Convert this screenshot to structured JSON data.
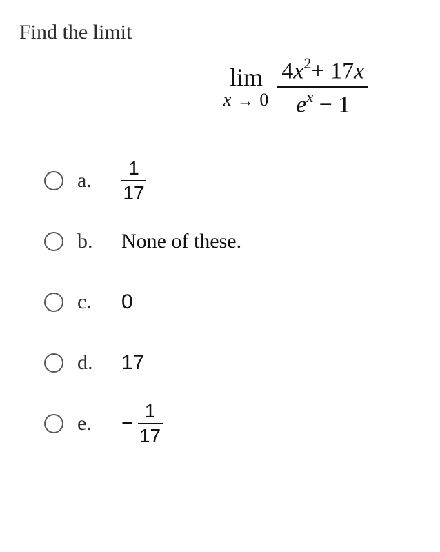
{
  "prompt": "Find the limit",
  "equation": {
    "lim_label": "lim",
    "lim_var": "x",
    "lim_arrow": "→",
    "lim_target": "0",
    "numerator_coef1": "4",
    "numerator_var1": "x",
    "numerator_exp": "2",
    "numerator_plus": "+ 17",
    "numerator_var2": "x",
    "denom_e": "e",
    "denom_exp": "x",
    "denom_tail": "− 1"
  },
  "options": {
    "a": {
      "letter": "a.",
      "frac_num": "1",
      "frac_den": "17"
    },
    "b": {
      "letter": "b.",
      "text": "None of these."
    },
    "c": {
      "letter": "c.",
      "text": "0"
    },
    "d": {
      "letter": "d.",
      "text": "17"
    },
    "e": {
      "letter": "e.",
      "neg": "−",
      "frac_num": "1",
      "frac_den": "17"
    }
  },
  "colors": {
    "text": "#2a2e33",
    "math": "#111111",
    "radio_border": "#55595e",
    "background": "#ffffff"
  }
}
